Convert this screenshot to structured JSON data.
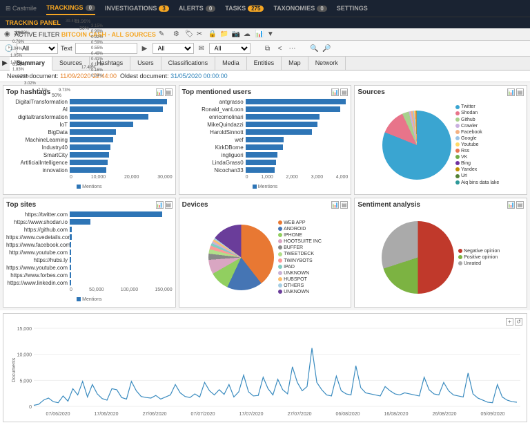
{
  "nav": {
    "logo": "⊞ Castmile",
    "items": [
      {
        "label": "TRACKINGS",
        "count": "0",
        "active": true
      },
      {
        "label": "INVESTIGATIONS",
        "count": "3"
      },
      {
        "label": "ALERTS",
        "count": "0"
      },
      {
        "label": "TASKS",
        "count": "275"
      },
      {
        "label": "TAXONOMIES",
        "count": "0"
      },
      {
        "label": "SETTINGS"
      }
    ]
  },
  "panel_title": "TRACKING PANEL",
  "filter": {
    "prefix": "ACTIVE FILTER",
    "name": "BITCOIN CASH - ALL SOURCES"
  },
  "ctrl": {
    "all": "All",
    "text": "Text",
    "all2": "All",
    "all3": "All"
  },
  "tabs": [
    "Summary",
    "Sources",
    "Hashtags",
    "Users",
    "Classifications",
    "Media",
    "Entities",
    "Map",
    "Network"
  ],
  "docinfo": {
    "newest_lbl": "Newest document:",
    "newest": "11/09/2020 22:44:00",
    "oldest_lbl": "Oldest document:",
    "oldest": "31/05/2020 00:00:00"
  },
  "hashtags": {
    "title": "Top hashtags",
    "legend": "Mentions",
    "max": 30000,
    "ticks": [
      "0",
      "10,000",
      "20,000",
      "30,000"
    ],
    "bars": [
      {
        "label": "DigitalTransformation",
        "v": 28500
      },
      {
        "label": "AI",
        "v": 27200
      },
      {
        "label": "digitaltransformation",
        "v": 23000
      },
      {
        "label": "IoT",
        "v": 18500
      },
      {
        "label": "BigData",
        "v": 13500
      },
      {
        "label": "MachineLearning",
        "v": 12800
      },
      {
        "label": "Industry40",
        "v": 12000
      },
      {
        "label": "SmartCity",
        "v": 11500
      },
      {
        "label": "ArtificialIntelligence",
        "v": 11000
      },
      {
        "label": "innovation",
        "v": 10700
      }
    ]
  },
  "users": {
    "title": "Top mentioned users",
    "legend": "Mentions",
    "max": 4000,
    "ticks": [
      "0",
      "1,000",
      "2,000",
      "3,000",
      "4,000"
    ],
    "bars": [
      {
        "label": "antgrasso",
        "v": 3900
      },
      {
        "label": "Ronald_vanLoon",
        "v": 3700
      },
      {
        "label": "enricomolinari",
        "v": 2900
      },
      {
        "label": "MikeQuindazzi",
        "v": 2800
      },
      {
        "label": "HaroldSinnott",
        "v": 2600
      },
      {
        "label": "wef",
        "v": 1500
      },
      {
        "label": "KirkDBorne",
        "v": 1450
      },
      {
        "label": "ingliguori",
        "v": 1250
      },
      {
        "label": "LindaGrass0",
        "v": 1200
      },
      {
        "label": "Nicochan33",
        "v": 1150
      }
    ]
  },
  "sites": {
    "title": "Top sites",
    "legend": "Mentions",
    "max": 150000,
    "ticks": [
      "0",
      "50,000",
      "100,000",
      "150,000"
    ],
    "bars": [
      {
        "label": "https://twitter.com",
        "v": 135000
      },
      {
        "label": "https://www.shodan.io",
        "v": 30000
      },
      {
        "label": "https://github.com",
        "v": 3000
      },
      {
        "label": "https://www.cvedetails.com",
        "v": 2800
      },
      {
        "label": "https://www.facebook.com",
        "v": 2500
      },
      {
        "label": "http://www.youtube.com",
        "v": 2200
      },
      {
        "label": "https://hubs.ly",
        "v": 2000
      },
      {
        "label": "https://www.youtube.com",
        "v": 1900
      },
      {
        "label": "https://www.forbes.com",
        "v": 1800
      },
      {
        "label": "https://www.linkedin.com",
        "v": 1700
      }
    ]
  },
  "sources": {
    "title": "Sources",
    "slices": [
      {
        "label": "Twitter",
        "pct": 81.1,
        "color": "#3aa5d1"
      },
      {
        "label": "Shodan",
        "pct": 11.96,
        "color": "#e8748a"
      },
      {
        "label": "Github",
        "pct": 3.15,
        "color": "#a8d18d"
      },
      {
        "label": "Crawler",
        "pct": 0.99,
        "color": "#c9b0e0"
      },
      {
        "label": "Facebook",
        "pct": 0.92,
        "color": "#f4b183"
      },
      {
        "label": "Google",
        "pct": 0.59,
        "color": "#9cc3e6"
      },
      {
        "label": "Youtube",
        "pct": 0.55,
        "color": "#ffd966"
      },
      {
        "label": "Rss",
        "pct": 0.49,
        "color": "#e87450"
      },
      {
        "label": "VK",
        "pct": 0.41,
        "color": "#70ad47"
      },
      {
        "label": "Bing",
        "pct": 0.17,
        "color": "#7030a0"
      },
      {
        "label": "Yandex",
        "pct": 0.16,
        "color": "#bf9000"
      },
      {
        "label": "Uri",
        "pct": 0.04,
        "color": "#548235"
      },
      {
        "label": "Aiq bins data lake",
        "pct": 0.01,
        "color": "#2e9999"
      }
    ]
  },
  "devices": {
    "title": "Devices",
    "slices": [
      {
        "label": "WEB APP",
        "pct": 39.49,
        "color": "#e87833"
      },
      {
        "label": "ANDROID",
        "pct": 17.49,
        "color": "#4575b4"
      },
      {
        "label": "IPHONE",
        "pct": 9.73,
        "color": "#91cf60"
      },
      {
        "label": "HOOTSUITE INC",
        "pct": 7.1,
        "color": "#d9a6c2"
      },
      {
        "label": "BUFFER",
        "pct": 3.02,
        "color": "#888888"
      },
      {
        "label": "TWEETDECK",
        "pct": 2.23,
        "color": "#b2df8a"
      },
      {
        "label": "TWINYBOTS",
        "pct": 1.83,
        "color": "#fb9a99"
      },
      {
        "label": "IPAD",
        "pct": 1.35,
        "color": "#80cdc1"
      },
      {
        "label": "UNKNOWN",
        "pct": 1.05,
        "color": "#cab2d6"
      },
      {
        "label": "HUBSPOT",
        "pct": 1.04,
        "color": "#fdbf6f"
      },
      {
        "label": "OTHERS",
        "pct": 0.76,
        "color": "#a6cee3"
      },
      {
        "label": "UNKNOWN",
        "pct": 14.92,
        "color": "#6a3d9a"
      }
    ]
  },
  "sentiment": {
    "title": "Sentiment analysis",
    "slices": [
      {
        "label": "Negative opinion",
        "pct": 50,
        "color": "#c0392b"
      },
      {
        "label": "Positive opinion",
        "pct": 20,
        "color": "#7cb342"
      },
      {
        "label": "Unrated",
        "pct": 30,
        "color": "#aaaaaa"
      }
    ]
  },
  "timeline": {
    "color": "#3a8bbf",
    "ymax": 15000,
    "yticks": [
      "0",
      "5,000",
      "10,000",
      "15,000"
    ],
    "xticks": [
      "07/06/2020",
      "17/06/2020",
      "27/06/2020",
      "07/07/2020",
      "17/07/2020",
      "27/07/2020",
      "06/08/2020",
      "16/08/2020",
      "26/08/2020",
      "05/09/2020"
    ],
    "ylabel": "Documents",
    "values": [
      200,
      400,
      1200,
      1600,
      900,
      700,
      2000,
      1000,
      3400,
      2200,
      4800,
      1800,
      4200,
      2400,
      1500,
      1200,
      3400,
      3200,
      1700,
      1400,
      4800,
      3000,
      1900,
      1700,
      1600,
      2100,
      1400,
      1800,
      2200,
      4200,
      2600,
      1900,
      1700,
      2400,
      1800,
      4600,
      3000,
      2200,
      3200,
      2300,
      4200,
      1800,
      2800,
      6000,
      2800,
      2000,
      2100,
      5600,
      3400,
      2200,
      5200,
      3200,
      2400,
      7600,
      4600,
      3000,
      3800,
      11200,
      4600,
      3200,
      2200,
      2000,
      5800,
      3000,
      2400,
      2200,
      7800,
      3600,
      2600,
      2400,
      2200,
      2000,
      3800,
      3000,
      2400,
      2200,
      2600,
      2400,
      2200,
      2000,
      5600,
      3200,
      2400,
      2200,
      4600,
      3000,
      2200,
      2000,
      1800,
      6400,
      2400,
      1600,
      1200,
      800,
      700,
      4200,
      1800,
      1200,
      900,
      800
    ]
  }
}
